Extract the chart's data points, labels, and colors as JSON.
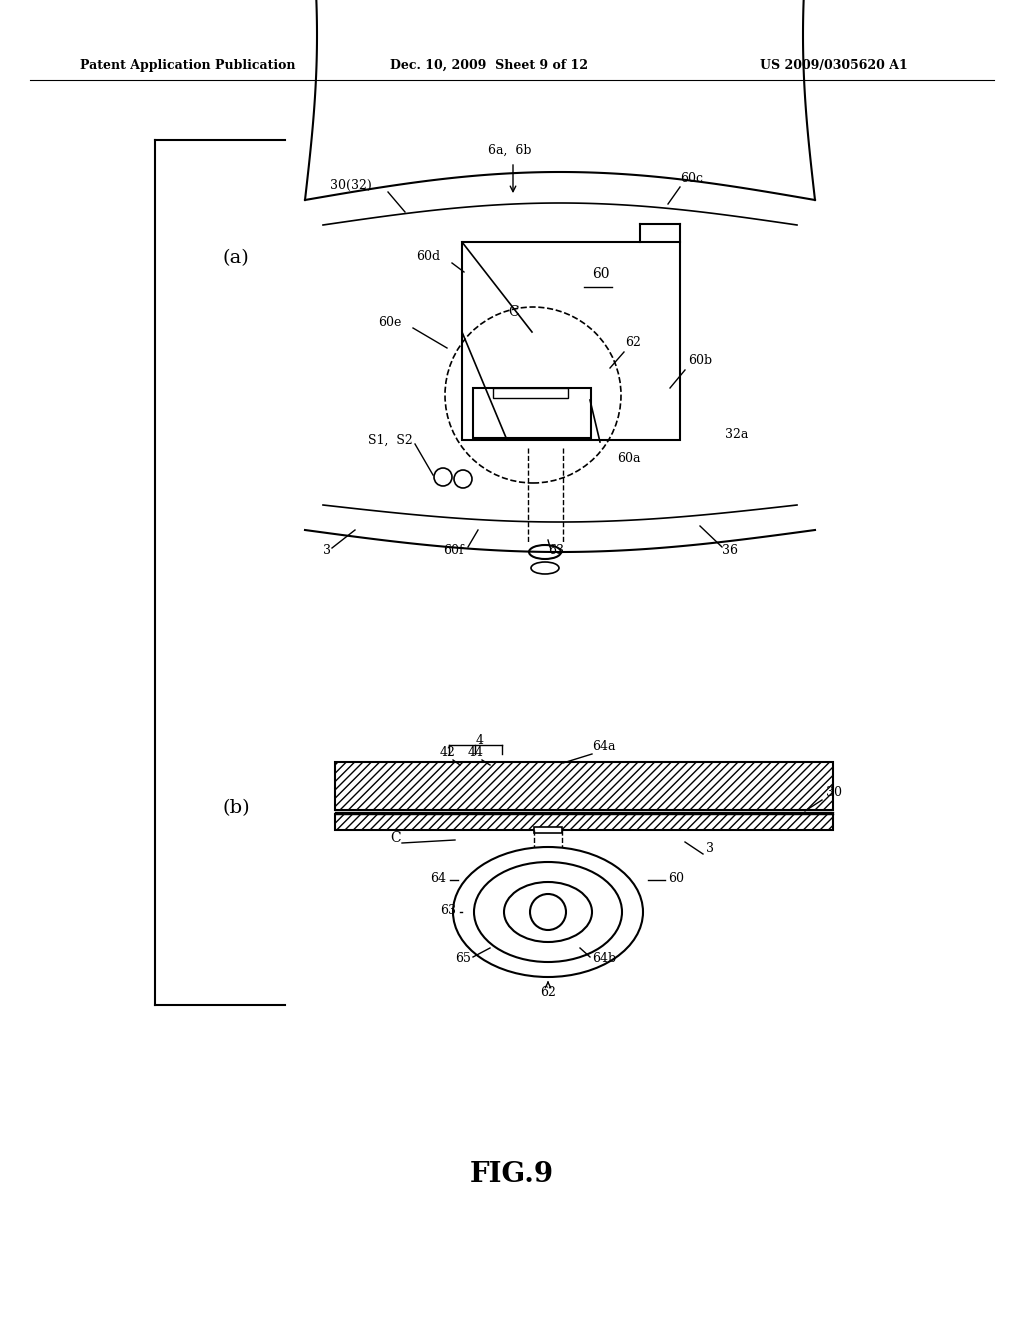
{
  "bg_color": "#ffffff",
  "header_left": "Patent Application Publication",
  "header_mid": "Dec. 10, 2009  Sheet 9 of 12",
  "header_right": "US 2009/0305620 A1",
  "figure_label": "FIG.9",
  "label_a": "(a)",
  "label_b": "(b)"
}
